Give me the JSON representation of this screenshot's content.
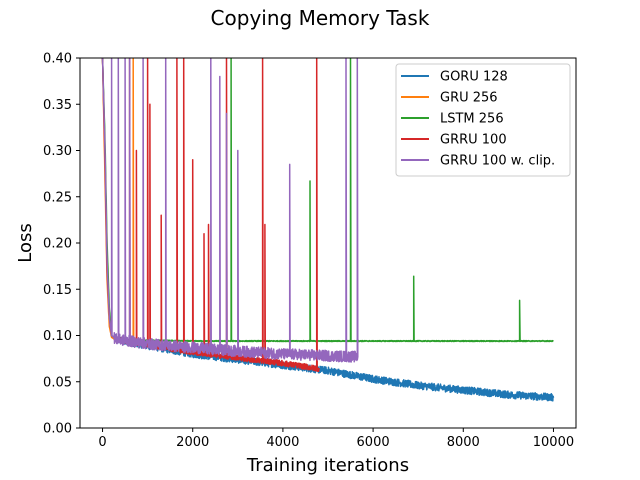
{
  "chart_data": {
    "type": "line",
    "title": "Copying Memory Task",
    "xlabel": "Training iterations",
    "ylabel": "Loss",
    "xlim": [
      -500,
      10500
    ],
    "ylim": [
      0,
      0.4
    ],
    "xticks": [
      0,
      2000,
      4000,
      6000,
      8000,
      10000
    ],
    "xtick_labels": [
      "0",
      "2000",
      "4000",
      "6000",
      "8000",
      "10000"
    ],
    "yticks": [
      0,
      0.05,
      0.1,
      0.15,
      0.2,
      0.25,
      0.3,
      0.35,
      0.4
    ],
    "ytick_labels": [
      "0.00",
      "0.05",
      "0.10",
      "0.15",
      "0.20",
      "0.25",
      "0.30",
      "0.35",
      "0.40"
    ],
    "legend_position": "top-right",
    "grid": false,
    "series": [
      {
        "name": "GORU 128",
        "color": "#1f77b4",
        "x": [
          0,
          50,
          100,
          150,
          200,
          300,
          500,
          1000,
          2000,
          3000,
          4000,
          5000,
          6000,
          7000,
          8000,
          9000,
          10000
        ],
        "y": [
          0.4,
          0.3,
          0.18,
          0.12,
          0.1,
          0.096,
          0.094,
          0.089,
          0.08,
          0.074,
          0.068,
          0.062,
          0.053,
          0.046,
          0.041,
          0.036,
          0.033
        ],
        "noise": 0.004,
        "spikes": []
      },
      {
        "name": "GRU 256",
        "color": "#ff7f0e",
        "x": [
          0,
          50,
          100,
          150,
          200,
          300,
          500,
          700,
          1000
        ],
        "y": [
          0.4,
          0.28,
          0.16,
          0.11,
          0.098,
          0.095,
          0.095,
          0.094,
          0.094
        ],
        "noise": 0.001,
        "spikes": [
          {
            "x": 680,
            "y": 0.4
          }
        ]
      },
      {
        "name": "LSTM 256",
        "color": "#2ca02c",
        "x": [
          0,
          50,
          100,
          150,
          200,
          300,
          600,
          2000,
          4000,
          6000,
          8000,
          10000
        ],
        "y": [
          0.4,
          0.32,
          0.2,
          0.13,
          0.1,
          0.096,
          0.095,
          0.094,
          0.094,
          0.094,
          0.094,
          0.094
        ],
        "noise": 0.0005,
        "spikes": [
          {
            "x": 2850,
            "y": 0.4
          },
          {
            "x": 4600,
            "y": 0.267
          },
          {
            "x": 5500,
            "y": 0.4
          },
          {
            "x": 6900,
            "y": 0.164
          },
          {
            "x": 9250,
            "y": 0.138
          }
        ]
      },
      {
        "name": "GRRU 100",
        "color": "#d62728",
        "x": [
          0,
          50,
          100,
          150,
          200,
          300,
          600,
          1000,
          2000,
          3000,
          4000,
          4800
        ],
        "y": [
          0.4,
          0.3,
          0.17,
          0.12,
          0.1,
          0.096,
          0.094,
          0.09,
          0.082,
          0.076,
          0.07,
          0.064
        ],
        "noise": 0.003,
        "spikes": [
          {
            "x": 600,
            "y": 0.4
          },
          {
            "x": 750,
            "y": 0.3
          },
          {
            "x": 1000,
            "y": 0.4
          },
          {
            "x": 1050,
            "y": 0.35
          },
          {
            "x": 1300,
            "y": 0.23
          },
          {
            "x": 1650,
            "y": 0.4
          },
          {
            "x": 1800,
            "y": 0.4
          },
          {
            "x": 2000,
            "y": 0.29
          },
          {
            "x": 2250,
            "y": 0.21
          },
          {
            "x": 2350,
            "y": 0.22
          },
          {
            "x": 2750,
            "y": 0.4
          },
          {
            "x": 3550,
            "y": 0.4
          },
          {
            "x": 3600,
            "y": 0.22
          },
          {
            "x": 4750,
            "y": 0.4
          }
        ]
      },
      {
        "name": "GRRU 100 w. clip.",
        "color": "#9467bd",
        "x": [
          0,
          50,
          100,
          150,
          200,
          300,
          600,
          1000,
          2000,
          3000,
          4000,
          5000,
          5650
        ],
        "y": [
          0.4,
          0.31,
          0.18,
          0.12,
          0.1,
          0.096,
          0.094,
          0.091,
          0.087,
          0.083,
          0.08,
          0.078,
          0.077
        ],
        "noise": 0.006,
        "spikes": [
          {
            "x": 200,
            "y": 0.4
          },
          {
            "x": 350,
            "y": 0.4
          },
          {
            "x": 500,
            "y": 0.4
          },
          {
            "x": 600,
            "y": 0.4
          },
          {
            "x": 900,
            "y": 0.4
          },
          {
            "x": 1400,
            "y": 0.4
          },
          {
            "x": 2400,
            "y": 0.4
          },
          {
            "x": 2600,
            "y": 0.38
          },
          {
            "x": 2750,
            "y": 0.34
          },
          {
            "x": 3000,
            "y": 0.3
          },
          {
            "x": 4150,
            "y": 0.285
          },
          {
            "x": 5400,
            "y": 0.4
          },
          {
            "x": 5650,
            "y": 0.4
          }
        ]
      }
    ]
  }
}
